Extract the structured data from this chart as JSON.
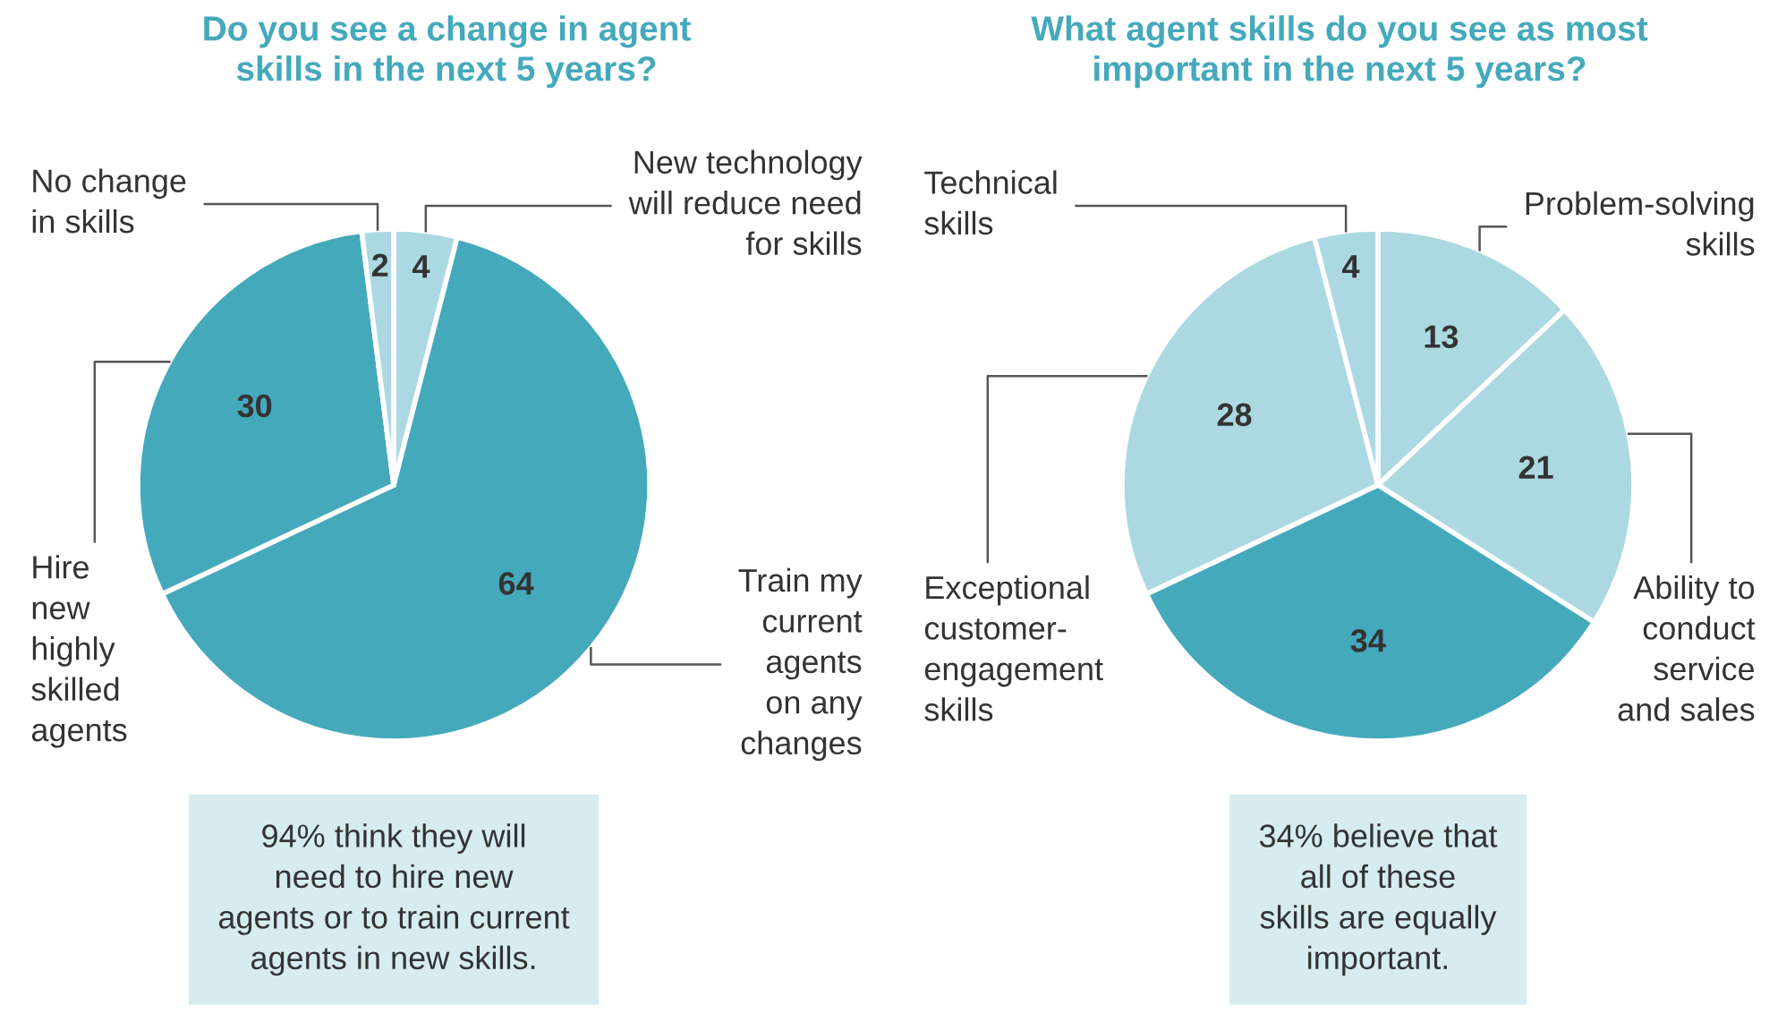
{
  "chart_data": [
    {
      "type": "pie",
      "title": "Do you see a change in agent\nskills in the next 5 years?",
      "categories": [
        "New technology\nwill reduce need\nfor skills",
        "Train my\ncurrent\nagents\non any\nchanges",
        "Hire\nnew\nhighly\nskilled\nagents",
        "No change\nin skills"
      ],
      "values": [
        4,
        64,
        30,
        2
      ],
      "colors": [
        "#acd9e1",
        "#45a9bc",
        "#45a9bc",
        "#acd9e1"
      ],
      "data_labels": true,
      "annotations": [
        "94% think they will\nneed to hire new\nagents or to train current\nagents in new skills."
      ]
    },
    {
      "type": "pie",
      "title": "What agent skills do you see as most\nimportant in the next 5 years?",
      "categories": [
        "Problem-solving\nskills",
        "Ability to\nconduct\nservice\nand sales",
        null,
        "Exceptional\ncustomer-\nengagement\nskills",
        "Technical\nskills"
      ],
      "values": [
        13,
        21,
        34,
        28,
        4
      ],
      "colors": [
        "#acd9e1",
        "#acd9e1",
        "#45a9bc",
        "#acd9e1",
        "#acd9e1"
      ],
      "data_labels": true,
      "annotations": [
        "34% believe that\nall of these\nskills are equally\nimportant."
      ]
    }
  ]
}
